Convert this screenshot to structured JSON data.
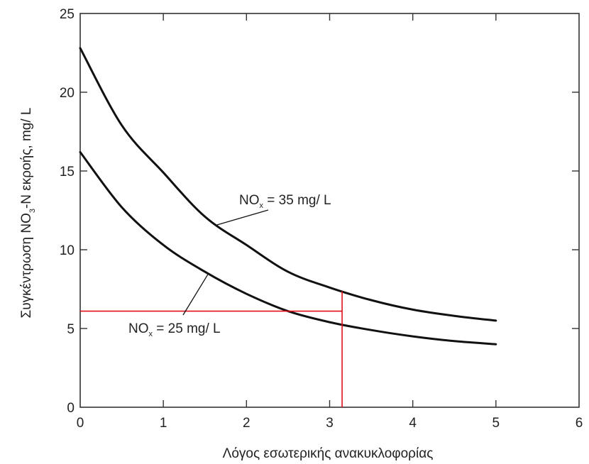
{
  "chart_data": {
    "type": "line",
    "xlabel": "Λόγος εσωτερικής ανακυκλοφορίας",
    "ylabel": {
      "prefix": "Συγκέντρωση NO",
      "sub": "3",
      "suffix": "-N εκροής, mg/ L"
    },
    "xlim": [
      0,
      6
    ],
    "ylim": [
      0,
      25
    ],
    "x_ticks": [
      0,
      1,
      2,
      3,
      4,
      5,
      6
    ],
    "y_ticks": [
      0,
      5,
      10,
      15,
      20,
      25
    ],
    "grid": false,
    "series": [
      {
        "x": [
          0,
          0.5,
          1,
          1.5,
          2,
          2.5,
          3,
          3.5,
          4,
          4.5,
          5
        ],
        "y": [
          22.8,
          17.9,
          14.9,
          12.1,
          10.3,
          8.6,
          7.6,
          6.8,
          6.2,
          5.8,
          5.5
        ]
      },
      {
        "x": [
          0,
          0.5,
          1,
          1.5,
          2,
          2.5,
          3,
          3.5,
          4,
          4.5,
          5
        ],
        "y": [
          16.2,
          12.7,
          10.3,
          8.6,
          7.2,
          6.1,
          5.4,
          4.9,
          4.5,
          4.2,
          4.0
        ]
      }
    ],
    "annotations": [
      {
        "main": "NO",
        "sub": "x",
        "rest": " = 35 mg/ L",
        "series_index": 0
      },
      {
        "main": "NO",
        "sub": "x",
        "rest": " = 25 mg/ L",
        "series_index": 1
      }
    ],
    "reference_lines": {
      "color": "#e0101a",
      "horizontal_y": 6.1,
      "vertical_x": 3.15
    }
  }
}
